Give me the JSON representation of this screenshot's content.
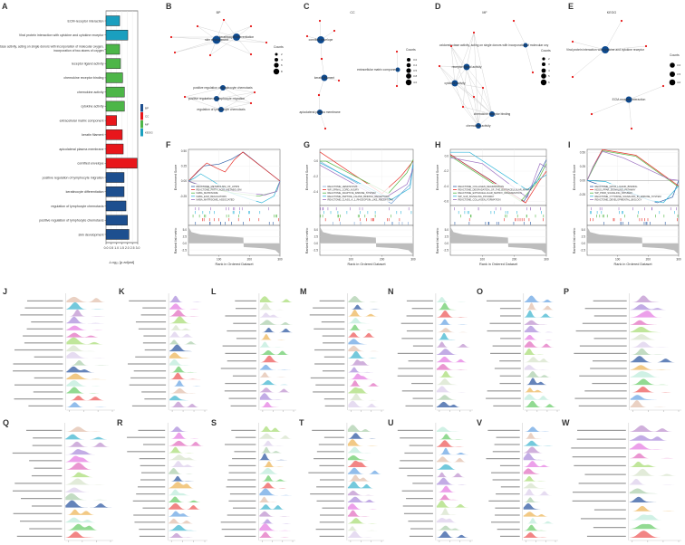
{
  "chart_data": [
    {
      "panel": "A",
      "type": "bar",
      "orientation": "horizontal",
      "categories": [
        "ECM-receptor interaction",
        "Viral protein interaction with cytokine and cytokine receptor",
        "oxidoreductase activity, acting on single donors with incorporation of molecular oxygen,\nincorporation of two atoms of oxygen",
        "receptor ligand activity",
        "chemokine receptor binding",
        "chemokine activity",
        "cytokine activity",
        "extracellular matrix component",
        "keratin filament",
        "apicolateral plasma membrane",
        "cornified envelope",
        "positive regulation of lymphocyte migration",
        "keratinocyte differentiation",
        "regulation of lymphocyte chemotaxis",
        "positive regulation of lymphocyte chemotaxis",
        "skin development"
      ],
      "values": [
        1.29,
        2.06,
        1.29,
        1.37,
        1.57,
        1.74,
        1.74,
        1.0,
        1.54,
        1.63,
        2.94,
        1.71,
        1.71,
        1.89,
        2.03,
        2.17
      ],
      "groups": [
        "KEGG",
        "KEGG",
        "MF",
        "MF",
        "MF",
        "MF",
        "MF",
        "CC",
        "CC",
        "CC",
        "CC",
        "BP",
        "BP",
        "BP",
        "BP",
        "BP"
      ],
      "xlabel": "-Log₁₀ [p.adjust]",
      "xlim": [
        0,
        3.0
      ],
      "xticks": [
        "0.0",
        "0.5",
        "1.0",
        "1.5",
        "2.0",
        "2.5",
        "3.0"
      ],
      "grid": true,
      "legend": {
        "placement": "right",
        "items": [
          {
            "label": "BP",
            "color": "#1d4f8f"
          },
          {
            "label": "CC",
            "color": "#e8161b"
          },
          {
            "label": "MF",
            "color": "#4db648"
          },
          {
            "label": "KEGG",
            "color": "#1a9fbf"
          }
        ]
      }
    },
    {
      "panel": "B",
      "type": "network",
      "title": "BP",
      "terms": [
        "skin development",
        "keratinocyte differentiation",
        "positive regulation of lymphocyte chemotaxis",
        "positive regulation of lymphocyte migration",
        "regulation of lymphocyte chemotaxis"
      ],
      "legend_title": "Counts",
      "legend_values": [
        "2",
        "4",
        "6",
        "8"
      ]
    },
    {
      "panel": "C",
      "type": "network",
      "title": "CC",
      "terms": [
        "cornified envelope",
        "keratin filament",
        "apicolateral plasma membrane",
        "extracellular matrix component"
      ],
      "legend_title": "Counts",
      "legend_values": [
        "3.0",
        "3.2",
        "3.5",
        "3.8",
        "4.0"
      ]
    },
    {
      "panel": "D",
      "type": "network",
      "title": "MF",
      "terms": [
        "oxidoreductase activity, acting on single donors with incorporation of molecular oxy",
        "receptor ligand activity",
        "cytokine activity",
        "chemokine receptor binding",
        "chemokine activity"
      ],
      "legend_title": "Counts",
      "legend_values": [
        "2",
        "3",
        "4",
        "5",
        "6"
      ]
    },
    {
      "panel": "E",
      "type": "network",
      "title": "KEGG",
      "terms": [
        "Viral protein interaction with cytokine and cytokine receptor",
        "ECM-receptor interaction"
      ],
      "legend_title": "Counts",
      "legend_values": [
        "3.0",
        "3.5",
        "4.0"
      ]
    },
    {
      "panel": "F",
      "type": "line",
      "ylabel": "Enrichment Score",
      "ylabel2": "Ranked list metric",
      "xlabel": "Rank in Ordered Dataset",
      "ylim": [
        -0.405,
        0.525
      ],
      "yticks": [
        0.5,
        0.25,
        0.0,
        -0.25
      ],
      "ytick_labels": [
        "0.50",
        "0.25",
        "0.00",
        "-0.25"
      ],
      "series": [
        {
          "name": "REACTOME_METABOLISM_OF_LIPIDS",
          "color": "#2e5fa8",
          "points": [
            [
              0,
              0
            ],
            [
              20,
              0.1
            ],
            [
              50,
              0.25
            ],
            [
              100,
              0.28
            ],
            [
              140,
              0.36
            ],
            [
              180,
              0.48
            ],
            [
              300,
              0
            ]
          ]
        },
        {
          "name": "REACTOME_FATTY_ACID_METABOLISM",
          "color": "#e8312a",
          "points": [
            [
              0,
              0
            ],
            [
              30,
              0.16
            ],
            [
              60,
              0.3
            ],
            [
              90,
              0.22
            ],
            [
              120,
              0.15
            ],
            [
              150,
              0.35
            ],
            [
              178,
              0.48
            ],
            [
              300,
              0
            ]
          ]
        },
        {
          "name": "NABA_MATRISOME",
          "color": "#55b847",
          "points": [
            [
              0,
              0
            ],
            [
              50,
              -0.1
            ],
            [
              150,
              -0.2
            ],
            [
              230,
              -0.25
            ],
            [
              285,
              -0.18
            ],
            [
              300,
              0
            ]
          ]
        },
        {
          "name": "NABA_ECM_REGULATORS",
          "color": "#2fb5d8",
          "points": [
            [
              0,
              0
            ],
            [
              20,
              0.05
            ],
            [
              40,
              0.12
            ],
            [
              80,
              0.0
            ],
            [
              140,
              -0.2
            ],
            [
              200,
              -0.3
            ],
            [
              240,
              -0.36
            ],
            [
              280,
              -0.25
            ],
            [
              300,
              0
            ]
          ]
        },
        {
          "name": "NABA_MATRISOME_ASSOCIATED",
          "color": "#9b6fc0",
          "points": [
            [
              0,
              0
            ],
            [
              50,
              -0.09
            ],
            [
              150,
              -0.17
            ],
            [
              250,
              -0.23
            ],
            [
              290,
              -0.17
            ],
            [
              300,
              0
            ]
          ]
        }
      ]
    },
    {
      "panel": "G",
      "type": "line",
      "ylabel": "Enrichment Score",
      "ylabel2": "Ranked list metric",
      "xlabel": "Rank in Ordered Dataset",
      "ylim": [
        -0.576,
        0.153
      ],
      "yticks": [
        0.0,
        -0.2,
        -0.4
      ],
      "ytick_labels": [
        "0.0",
        "-0.2",
        "-0.4"
      ],
      "series": [
        {
          "name": "REACTOME_HEMOSTASIS",
          "color": "#7fa7d8",
          "points": [
            [
              0,
              0
            ],
            [
              20,
              -0.05
            ],
            [
              230,
              -0.55
            ],
            [
              290,
              -0.3
            ],
            [
              300,
              0
            ]
          ]
        },
        {
          "name": "WP_SPINAL_CORD_INJURY",
          "color": "#e8312a",
          "points": [
            [
              0,
              0.12
            ],
            [
              200,
              -0.42
            ],
            [
              260,
              -0.2
            ],
            [
              290,
              -0.05
            ],
            [
              300,
              0
            ]
          ]
        },
        {
          "name": "REACTOME_ADAPTIVE_IMMUNE_SYSTEM",
          "color": "#55b847",
          "points": [
            [
              0,
              0
            ],
            [
              20,
              0.0
            ],
            [
              220,
              -0.42
            ],
            [
              280,
              -0.15
            ],
            [
              300,
              0.02
            ]
          ]
        },
        {
          "name": "REACTOME_PEPTIDE_LIGAND_BINDING_RECEPTORS",
          "color": "#2fb5d8",
          "points": [
            [
              0,
              -0.02
            ],
            [
              230,
              -0.5
            ],
            [
              290,
              -0.35
            ],
            [
              300,
              -0.05
            ]
          ]
        },
        {
          "name": "REACTOME_CLASS_A_1_RHODOPSIN_LIKE_RECEPTORS",
          "color": "#9b6fc0",
          "points": [
            [
              0,
              -0.05
            ],
            [
              200,
              -0.5
            ],
            [
              280,
              -0.3
            ],
            [
              300,
              -0.1
            ]
          ]
        }
      ]
    },
    {
      "panel": "H",
      "type": "line",
      "ylabel": "Enrichment Score",
      "ylabel2": "Ranked list metric",
      "xlabel": "Rank in Ordered Dataset",
      "ylim": [
        -0.655,
        0.088
      ],
      "yticks": [
        0.0,
        -0.2,
        -0.4,
        -0.6
      ],
      "ytick_labels": [
        "0.0",
        "-0.2",
        "-0.4",
        "-0.6"
      ],
      "series": [
        {
          "name": "REACTOME_COLLAGEN_DEGRADATION",
          "color": "#2e5fa8",
          "points": [
            [
              0,
              0.02
            ],
            [
              230,
              -0.6
            ],
            [
              270,
              -0.3
            ],
            [
              300,
              -0.05
            ]
          ]
        },
        {
          "name": "REACTOME_DEGRADATION_OF_THE_EXTRACELLULAR_MATRIX",
          "color": "#e8312a",
          "points": [
            [
              0,
              0.02
            ],
            [
              235,
              -0.62
            ],
            [
              275,
              -0.35
            ],
            [
              300,
              -0.2
            ]
          ]
        },
        {
          "name": "REACTOME_EXTRACELLULAR_MATRIX_ORGANIZATION",
          "color": "#55b847",
          "points": [
            [
              0,
              0
            ],
            [
              220,
              -0.6
            ],
            [
              270,
              -0.35
            ],
            [
              300,
              -0.1
            ]
          ]
        },
        {
          "name": "WP_IL18_SIGNALING_PATHWAY",
          "color": "#2fb5d8",
          "points": [
            [
              0,
              0.05
            ],
            [
              60,
              0.05
            ],
            [
              240,
              -0.45
            ],
            [
              280,
              -0.3
            ],
            [
              300,
              -0.25
            ]
          ]
        },
        {
          "name": "REACTOME_COLLAGEN_FORMATION",
          "color": "#9b6fc0",
          "points": [
            [
              0,
              -0.02
            ],
            [
              100,
              -0.1
            ],
            [
              240,
              -0.55
            ],
            [
              280,
              -0.1
            ],
            [
              300,
              -0.15
            ]
          ]
        }
      ]
    },
    {
      "panel": "I",
      "type": "line",
      "ylabel": "Enrichment Score",
      "ylabel2": "Ranked list metric",
      "xlabel": "Rank in Ordered Dataset",
      "ylim": [
        -0.45,
        0.555
      ],
      "yticks": [
        0.5,
        0.25,
        0.0,
        -0.25
      ],
      "ytick_labels": [
        "0.50",
        "0.25",
        "0.00",
        "-0.25"
      ],
      "series": [
        {
          "name": "REACTOME_GPCR_LIGAND_BINDING",
          "color": "#2e5fa8",
          "points": [
            [
              0,
              0
            ],
            [
              50,
              -0.1
            ],
            [
              150,
              -0.25
            ],
            [
              230,
              -0.4
            ],
            [
              280,
              -0.3
            ],
            [
              300,
              0
            ]
          ]
        },
        {
          "name": "KEGG_PPAR_SIGNALING_PATHWAY",
          "color": "#e8312a",
          "points": [
            [
              0,
              0
            ],
            [
              20,
              0.25
            ],
            [
              50,
              0.55
            ],
            [
              160,
              0.45
            ],
            [
              300,
              -0.1
            ]
          ]
        },
        {
          "name": "WP_PPAR_SIGNALING_PATHWAY",
          "color": "#55b847",
          "points": [
            [
              0,
              0
            ],
            [
              20,
              0.22
            ],
            [
              50,
              0.53
            ],
            [
              160,
              0.43
            ],
            [
              300,
              -0.12
            ]
          ]
        },
        {
          "name": "REACTOME_CYTOKINE_SIGNALING_IN_IMMUNE_SYSTEM",
          "color": "#2fb5d8",
          "points": [
            [
              0,
              0
            ],
            [
              60,
              -0.02
            ],
            [
              200,
              -0.35
            ],
            [
              250,
              -0.4
            ],
            [
              300,
              -0.1
            ]
          ]
        },
        {
          "name": "REACTOME_DEVELOPMENTAL_BIOLOGY",
          "color": "#9b6fc0",
          "points": [
            [
              0,
              0
            ],
            [
              20,
              0.25
            ],
            [
              50,
              0.52
            ],
            [
              120,
              0.4
            ],
            [
              270,
              0.02
            ],
            [
              300,
              0
            ]
          ]
        }
      ]
    },
    {
      "panel": "J",
      "type": "ridge",
      "ridges": 16
    },
    {
      "panel": "K",
      "type": "ridge",
      "ridges": 16
    },
    {
      "panel": "L",
      "type": "ridge",
      "ridges": 15
    },
    {
      "panel": "M",
      "type": "ridge",
      "ridges": 16
    },
    {
      "panel": "N",
      "type": "ridge",
      "ridges": 15
    },
    {
      "panel": "O",
      "type": "ridge",
      "ridges": 15
    },
    {
      "panel": "P",
      "type": "ridge",
      "ridges": 15
    },
    {
      "panel": "Q",
      "type": "ridge",
      "ridges": 15
    },
    {
      "panel": "R",
      "type": "ridge",
      "ridges": 16
    },
    {
      "panel": "S",
      "type": "ridge",
      "ridges": 16
    },
    {
      "panel": "T",
      "type": "ridge",
      "ridges": 16
    },
    {
      "panel": "U",
      "type": "ridge",
      "ridges": 15
    },
    {
      "panel": "V",
      "type": "ridge",
      "ridges": 16
    },
    {
      "panel": "W",
      "type": "ridge",
      "ridges": 13
    }
  ],
  "gsea_ranked_metric": {
    "yticks": [
      5.0,
      2.5,
      0.0,
      -2.5
    ],
    "ytick_labels": [
      "5.0",
      "2.5",
      "0.0",
      "-2.5"
    ],
    "ylim": [
      -4.5,
      6.7
    ],
    "xticks": [
      "100",
      "200",
      "300"
    ],
    "points": [
      [
        1,
        6.0
      ],
      [
        10,
        4.2
      ],
      [
        40,
        3.3
      ],
      [
        100,
        2.8
      ],
      [
        180,
        2.1
      ],
      [
        181,
        -1.4
      ],
      [
        250,
        -1.9
      ],
      [
        285,
        -2.6
      ],
      [
        300,
        -4.2
      ]
    ]
  },
  "network_colors": {
    "term": "#0d4a8f",
    "gene": "#e81818",
    "edge": "#cccccc"
  },
  "ridge_palette": [
    "#e6c9b8",
    "#5bc0d6",
    "#c8a2d6",
    "#b79ee0",
    "#e98fe6",
    "#e684c9",
    "#b5e28a",
    "#dde8d2",
    "#e2d6ee",
    "#b9d6b9",
    "#4a6fae",
    "#f0c070",
    "#c8eee0",
    "#7fd37f",
    "#f07070",
    "#7fb2e8"
  ]
}
